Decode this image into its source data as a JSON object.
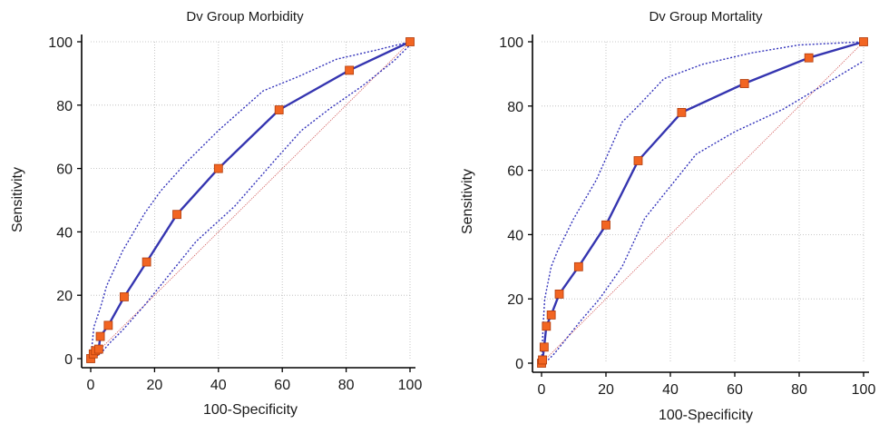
{
  "chart_data": [
    {
      "type": "line",
      "title": "Dv Group Morbidity",
      "xlabel": "100-Specificity",
      "ylabel": "Sensitivity",
      "xlim": [
        0,
        100
      ],
      "ylim": [
        0,
        100
      ],
      "xticks": [
        "0",
        "20",
        "40",
        "60",
        "80",
        "100"
      ],
      "yticks": [
        "0",
        "20",
        "40",
        "60",
        "80",
        "100"
      ],
      "grid": true,
      "reference_line": [
        [
          0,
          0
        ],
        [
          100,
          100
        ]
      ],
      "x": [
        0,
        0.8,
        1.5,
        2.5,
        3,
        5.5,
        10.5,
        17.5,
        27,
        40,
        59,
        81,
        100
      ],
      "y": [
        0,
        1.5,
        2.5,
        3,
        7,
        10.5,
        19.5,
        30.5,
        45.5,
        60,
        78.5,
        91,
        100
      ],
      "ci_upper": {
        "x": [
          0,
          1,
          3,
          5,
          10,
          17,
          22,
          30,
          40,
          54,
          65,
          77,
          90,
          100
        ],
        "y": [
          0,
          10,
          16,
          23,
          34,
          46,
          53,
          62,
          72,
          84.5,
          89,
          94.5,
          97.5,
          100
        ]
      },
      "ci_lower": {
        "x": [
          0,
          3,
          6,
          10,
          17,
          25,
          33,
          45,
          58,
          66,
          75,
          85,
          95,
          100
        ],
        "y": [
          0,
          1.5,
          5,
          9,
          17,
          27,
          37,
          48,
          63,
          72,
          79,
          86,
          94,
          99
        ]
      }
    },
    {
      "type": "line",
      "title": "Dv Group Mortality",
      "xlabel": "100-Specificity",
      "ylabel": "Sensitivity",
      "xlim": [
        0,
        100
      ],
      "ylim": [
        0,
        100
      ],
      "xticks": [
        "0",
        "20",
        "40",
        "60",
        "80",
        "100"
      ],
      "yticks": [
        "0",
        "20",
        "40",
        "60",
        "80",
        "100"
      ],
      "grid": true,
      "reference_line": [
        [
          0,
          0
        ],
        [
          100,
          100
        ]
      ],
      "x": [
        0,
        0.3,
        0.8,
        1.5,
        3,
        5.5,
        11.5,
        20,
        30,
        43.5,
        63,
        83,
        100
      ],
      "y": [
        0,
        1,
        5,
        11.5,
        15,
        21.5,
        30,
        43,
        63,
        78,
        87,
        95,
        100
      ],
      "ci_upper": {
        "x": [
          0,
          0.5,
          1,
          3,
          5,
          10,
          17,
          25,
          30,
          38,
          50,
          65,
          80,
          90,
          100
        ],
        "y": [
          0,
          12,
          20,
          30,
          35,
          45,
          57,
          75,
          80,
          88.5,
          93,
          96.5,
          99,
          99.5,
          100
        ]
      },
      "ci_lower": {
        "x": [
          0,
          2,
          4,
          8,
          12,
          18,
          25,
          32,
          40,
          48,
          60,
          75,
          85,
          100
        ],
        "y": [
          0,
          1,
          3,
          8,
          13,
          20,
          30,
          45,
          55,
          65,
          72,
          79,
          85,
          94
        ]
      }
    }
  ]
}
